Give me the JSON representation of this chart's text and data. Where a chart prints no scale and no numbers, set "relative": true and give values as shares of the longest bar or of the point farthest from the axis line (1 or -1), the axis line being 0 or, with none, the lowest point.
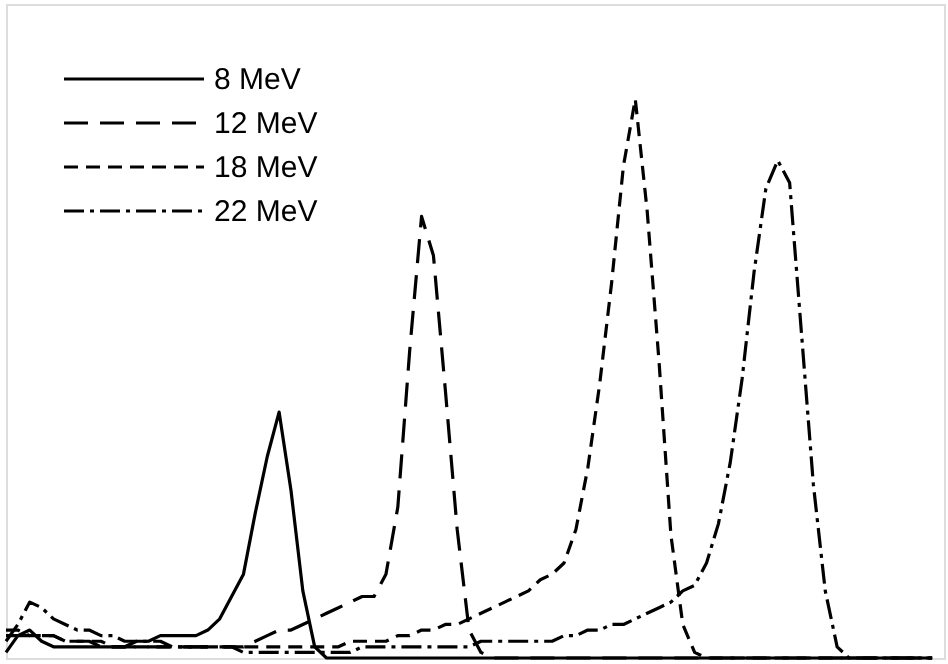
{
  "chart_data": {
    "type": "line",
    "relative": true,
    "tick_labels": false,
    "grid": false,
    "legend": "top left",
    "marker": "none",
    "categories": [
      null,
      null,
      null,
      null,
      null,
      null,
      null,
      null,
      null,
      null,
      null,
      null,
      null,
      null,
      null,
      null,
      null,
      null,
      null,
      null,
      null,
      null,
      null,
      null,
      null,
      null,
      null,
      null,
      null,
      null,
      null,
      null,
      null,
      null,
      null,
      null,
      null,
      null,
      null,
      null,
      null,
      null,
      null,
      null,
      null,
      null,
      null,
      null,
      null,
      null,
      null,
      null,
      null,
      null,
      null,
      null,
      null,
      null,
      null,
      null,
      null,
      null,
      null,
      null,
      null,
      null,
      null,
      null,
      null,
      null,
      null,
      null,
      null,
      null,
      null,
      null,
      null,
      null,
      null
    ],
    "series": [
      {
        "name": "8 MeV",
        "color": "#000000",
        "line_style": "solid",
        "values": [
          0.01,
          0.04,
          0.05,
          0.03,
          0.02,
          0.02,
          0.02,
          0.02,
          0.02,
          0.02,
          0.02,
          0.03,
          0.03,
          0.04,
          0.04,
          0.04,
          0.04,
          0.05,
          0.07,
          0.11,
          0.15,
          0.26,
          0.36,
          0.44,
          0.3,
          0.12,
          0.02,
          0,
          0,
          0,
          0,
          0,
          0,
          0,
          0,
          0,
          0,
          0,
          0,
          0,
          0,
          0,
          0,
          0,
          0,
          0,
          0,
          0,
          0,
          0,
          0,
          0,
          0,
          0,
          0,
          0,
          0,
          0,
          0,
          0,
          0,
          0,
          0,
          0,
          0,
          0,
          0,
          0,
          0,
          0,
          0,
          0,
          0,
          0,
          0,
          0,
          0,
          0,
          0
        ]
      },
      {
        "name": "12 MeV",
        "color": "#000000",
        "line_style": "longdashed",
        "values": [
          0.04,
          0.04,
          0.04,
          0.04,
          0.04,
          0.03,
          0.03,
          0.03,
          0.02,
          0.02,
          0.02,
          0.02,
          0.02,
          0.02,
          0.02,
          0.02,
          0.02,
          0.02,
          0.02,
          0.02,
          0.02,
          0.03,
          0.04,
          0.05,
          0.05,
          0.06,
          0.07,
          0.08,
          0.09,
          0.1,
          0.11,
          0.11,
          0.15,
          0.27,
          0.55,
          0.79,
          0.72,
          0.48,
          0.23,
          0.05,
          0.01,
          0,
          0,
          0,
          0,
          0,
          0,
          0,
          0,
          0,
          0,
          0,
          0,
          0,
          0,
          0,
          0,
          0,
          0,
          0,
          0,
          0,
          0,
          0,
          0,
          0,
          0,
          0,
          0,
          0,
          0,
          0,
          0,
          0,
          0,
          0,
          0,
          0,
          0
        ]
      },
      {
        "name": "18 MeV",
        "color": "#000000",
        "line_style": "dashed",
        "values": [
          0.05,
          0.05,
          0.04,
          0.04,
          0.04,
          0.03,
          0.03,
          0.03,
          0.03,
          0.02,
          0.02,
          0.02,
          0.02,
          0.02,
          0.02,
          0.02,
          0.02,
          0.02,
          0.02,
          0.02,
          0.02,
          0.02,
          0.02,
          0.02,
          0.02,
          0.02,
          0.02,
          0.02,
          0.02,
          0.03,
          0.03,
          0.03,
          0.03,
          0.04,
          0.04,
          0.05,
          0.05,
          0.06,
          0.06,
          0.07,
          0.08,
          0.09,
          0.1,
          0.11,
          0.12,
          0.14,
          0.15,
          0.17,
          0.23,
          0.34,
          0.49,
          0.67,
          0.88,
          1.0,
          0.8,
          0.53,
          0.22,
          0.06,
          0.01,
          0,
          0,
          0,
          0,
          0,
          0,
          0,
          0,
          0,
          0,
          0,
          0,
          0,
          0,
          0,
          0,
          0,
          0,
          0,
          0
        ]
      },
      {
        "name": "22 MeV",
        "color": "#000000",
        "line_style": "dashdot",
        "values": [
          0.03,
          0.06,
          0.1,
          0.09,
          0.07,
          0.06,
          0.05,
          0.05,
          0.04,
          0.04,
          0.03,
          0.03,
          0.03,
          0.03,
          0.02,
          0.02,
          0.02,
          0.02,
          0.02,
          0.02,
          0.01,
          0.01,
          0.01,
          0.01,
          0.01,
          0.01,
          0.01,
          0.01,
          0.01,
          0.01,
          0.02,
          0.02,
          0.02,
          0.02,
          0.02,
          0.02,
          0.02,
          0.02,
          0.02,
          0.02,
          0.03,
          0.03,
          0.03,
          0.03,
          0.03,
          0.03,
          0.03,
          0.04,
          0.04,
          0.05,
          0.05,
          0.06,
          0.06,
          0.07,
          0.08,
          0.09,
          0.1,
          0.12,
          0.13,
          0.17,
          0.24,
          0.35,
          0.5,
          0.69,
          0.84,
          0.89,
          0.85,
          0.58,
          0.31,
          0.12,
          0.02,
          0,
          0,
          0,
          0,
          0,
          0,
          0,
          0
        ]
      }
    ]
  }
}
